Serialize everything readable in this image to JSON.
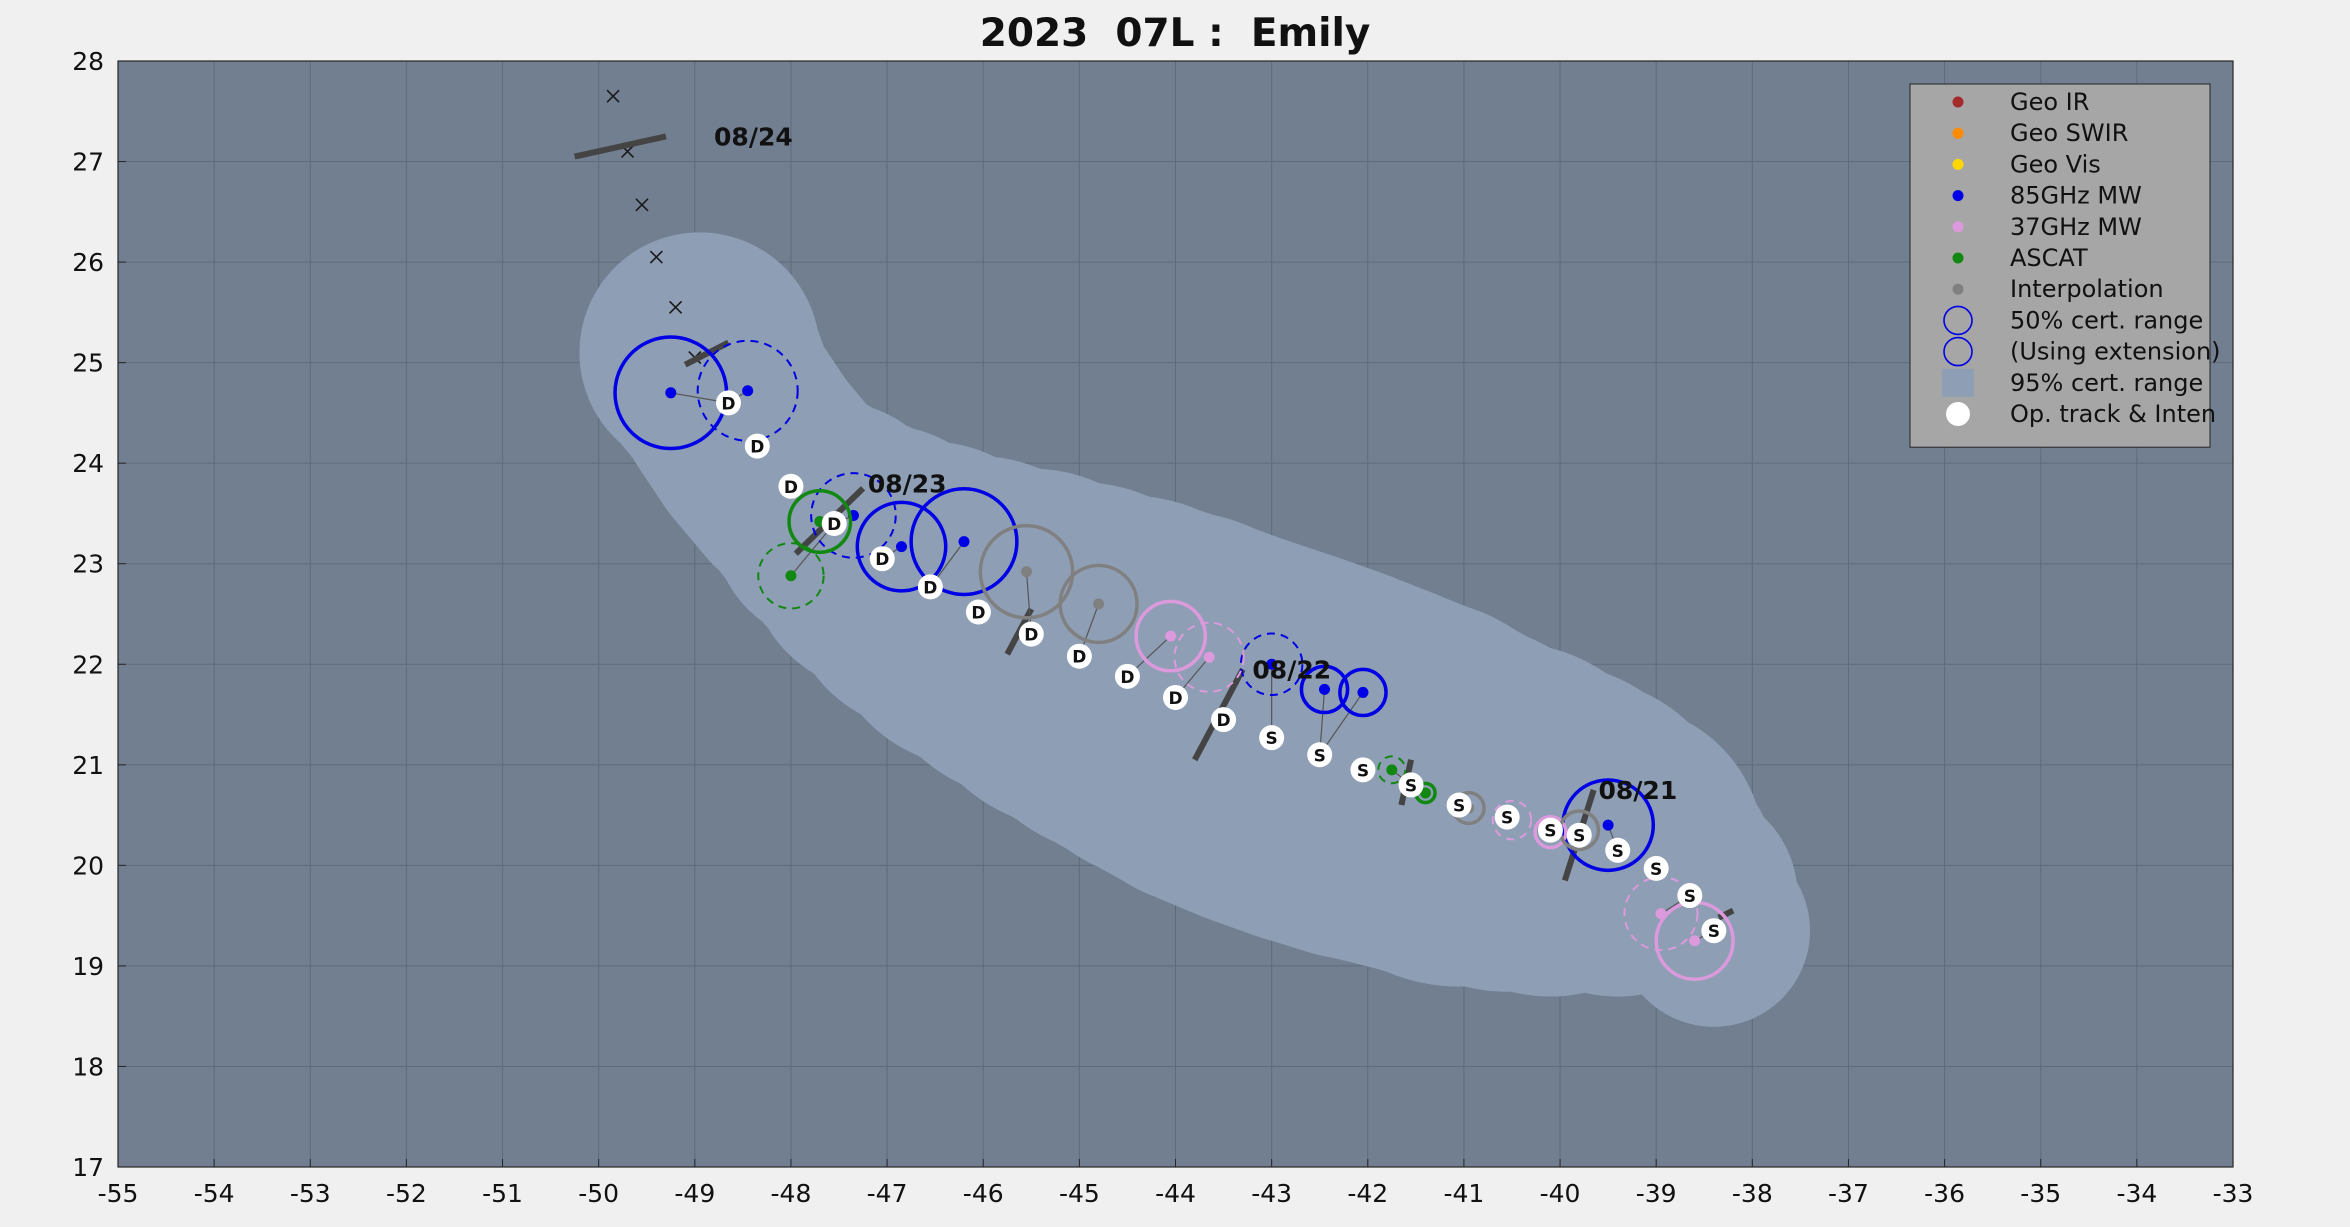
{
  "chart_data": {
    "type": "scatter",
    "title": "2023  07L :  Emily",
    "xlim": [
      -55,
      -33
    ],
    "ylim": [
      17,
      28
    ],
    "x_ticks": [
      -55,
      -54,
      -53,
      -52,
      -51,
      -50,
      -49,
      -48,
      -47,
      -46,
      -45,
      -44,
      -43,
      -42,
      -41,
      -40,
      -39,
      -38,
      -37,
      -36,
      -35,
      -34,
      -33
    ],
    "y_ticks": [
      17,
      18,
      19,
      20,
      21,
      22,
      23,
      24,
      25,
      26,
      27,
      28
    ],
    "grid": true,
    "legend_position": "top-right",
    "colors": {
      "figure_bg": "#f0f0f0",
      "axes_bg": "#717f91",
      "cert95": "#8e9eb4",
      "legend_bg": "#a6a6a6",
      "geo_ir": "#a52a2a",
      "geo_swir": "#ff8c00",
      "geo_vis": "#ffd700",
      "mw85": "#0000e6",
      "mw37": "#dc9adc",
      "ascat": "#118811",
      "interp": "#808080"
    },
    "legend": [
      {
        "label": "Geo IR",
        "kind": "dot",
        "color": "#a52a2a"
      },
      {
        "label": "Geo SWIR",
        "kind": "dot",
        "color": "#ff8c00"
      },
      {
        "label": "Geo Vis",
        "kind": "dot",
        "color": "#ffd700"
      },
      {
        "label": "85GHz MW",
        "kind": "dot",
        "color": "#0000e6"
      },
      {
        "label": "37GHz MW",
        "kind": "dot",
        "color": "#dc9adc"
      },
      {
        "label": "ASCAT",
        "kind": "dot",
        "color": "#118811"
      },
      {
        "label": "Interpolation",
        "kind": "dot",
        "color": "#808080"
      },
      {
        "label": "50% cert. range",
        "kind": "circle-solid",
        "color": "#0000e6"
      },
      {
        "label": "(Using extension)",
        "kind": "circle-dashed",
        "color": "#0000e6"
      },
      {
        "label": "95% cert. range",
        "kind": "square",
        "color": "#8e9eb4"
      },
      {
        "label": "Op. track & Inten",
        "kind": "white-dot",
        "color": "#ffffff"
      }
    ],
    "date_labels": [
      {
        "text": "08/24",
        "x": -48.8,
        "y": 27.25
      },
      {
        "text": "08/23",
        "x": -47.2,
        "y": 23.8
      },
      {
        "text": "08/22",
        "x": -43.2,
        "y": 21.95
      },
      {
        "text": "08/21",
        "x": -39.6,
        "y": 20.75
      }
    ],
    "op_track": [
      {
        "x": -38.4,
        "y": 19.35,
        "label": "S"
      },
      {
        "x": -38.65,
        "y": 19.7,
        "label": "S"
      },
      {
        "x": -39.0,
        "y": 19.97,
        "label": "S"
      },
      {
        "x": -39.4,
        "y": 20.15,
        "label": "S"
      },
      {
        "x": -39.8,
        "y": 20.3,
        "label": "S"
      },
      {
        "x": -40.1,
        "y": 20.35,
        "label": "S"
      },
      {
        "x": -40.55,
        "y": 20.48,
        "label": "S"
      },
      {
        "x": -41.05,
        "y": 20.6,
        "label": "S"
      },
      {
        "x": -41.55,
        "y": 20.8,
        "label": "S"
      },
      {
        "x": -42.05,
        "y": 20.95,
        "label": "S"
      },
      {
        "x": -42.5,
        "y": 21.1,
        "label": "S"
      },
      {
        "x": -43.0,
        "y": 21.27,
        "label": "S"
      },
      {
        "x": -43.5,
        "y": 21.45,
        "label": "D"
      },
      {
        "x": -44.0,
        "y": 21.67,
        "label": "D"
      },
      {
        "x": -44.5,
        "y": 21.88,
        "label": "D"
      },
      {
        "x": -45.0,
        "y": 22.08,
        "label": "D"
      },
      {
        "x": -45.5,
        "y": 22.3,
        "label": "D"
      },
      {
        "x": -46.05,
        "y": 22.52,
        "label": "D"
      },
      {
        "x": -46.55,
        "y": 22.77,
        "label": "D"
      },
      {
        "x": -47.05,
        "y": 23.05,
        "label": "D"
      },
      {
        "x": -47.55,
        "y": 23.4,
        "label": "D"
      },
      {
        "x": -48.0,
        "y": 23.77,
        "label": "D"
      },
      {
        "x": -48.35,
        "y": 24.17,
        "label": "D"
      },
      {
        "x": -48.65,
        "y": 24.6,
        "label": "D"
      }
    ],
    "forecast_track": [
      {
        "x": -49.0,
        "y": 25.05
      },
      {
        "x": -49.2,
        "y": 25.55
      },
      {
        "x": -49.4,
        "y": 26.05
      },
      {
        "x": -49.55,
        "y": 26.57
      },
      {
        "x": -49.7,
        "y": 27.1
      },
      {
        "x": -49.85,
        "y": 27.65
      }
    ],
    "fixes": [
      {
        "type": "85GHz MW",
        "x": -39.5,
        "y": 20.4,
        "r50": 0.47,
        "extension": false
      },
      {
        "type": "85GHz MW",
        "x": -42.05,
        "y": 21.72,
        "r50": 0.24,
        "extension": false
      },
      {
        "type": "85GHz MW",
        "x": -42.45,
        "y": 21.75,
        "r50": 0.24,
        "extension": false
      },
      {
        "type": "85GHz MW",
        "x": -43.0,
        "y": 22.0,
        "r50": 0.32,
        "extension": true
      },
      {
        "type": "85GHz MW",
        "x": -46.2,
        "y": 23.22,
        "r50": 0.55,
        "extension": false
      },
      {
        "type": "85GHz MW",
        "x": -46.85,
        "y": 23.17,
        "r50": 0.46,
        "extension": false
      },
      {
        "type": "85GHz MW",
        "x": -47.35,
        "y": 23.48,
        "r50": 0.44,
        "extension": true
      },
      {
        "type": "85GHz MW",
        "x": -48.45,
        "y": 24.72,
        "r50": 0.52,
        "extension": true
      },
      {
        "type": "85GHz MW",
        "x": -49.25,
        "y": 24.7,
        "r50": 0.58,
        "extension": false
      },
      {
        "type": "37GHz MW",
        "x": -38.6,
        "y": 19.25,
        "r50": 0.4,
        "extension": false
      },
      {
        "type": "37GHz MW",
        "x": -38.95,
        "y": 19.52,
        "r50": 0.38,
        "extension": true
      },
      {
        "type": "37GHz MW",
        "x": -40.1,
        "y": 20.33,
        "r50": 0.16,
        "extension": false
      },
      {
        "type": "37GHz MW",
        "x": -40.5,
        "y": 20.45,
        "r50": 0.2,
        "extension": true
      },
      {
        "type": "37GHz MW",
        "x": -43.65,
        "y": 22.07,
        "r50": 0.36,
        "extension": true
      },
      {
        "type": "37GHz MW",
        "x": -44.05,
        "y": 22.28,
        "r50": 0.36,
        "extension": false
      },
      {
        "type": "ASCAT",
        "x": -41.4,
        "y": 20.72,
        "r50": 0.1,
        "extension": false
      },
      {
        "type": "ASCAT",
        "x": -41.75,
        "y": 20.95,
        "r50": 0.14,
        "extension": true
      },
      {
        "type": "ASCAT",
        "x": -47.7,
        "y": 23.42,
        "r50": 0.32,
        "extension": false
      },
      {
        "type": "ASCAT",
        "x": -48.0,
        "y": 22.88,
        "r50": 0.34,
        "extension": true
      },
      {
        "type": "Interpolation",
        "x": -39.8,
        "y": 20.35,
        "r50": 0.2,
        "extension": false
      },
      {
        "type": "Interpolation",
        "x": -40.95,
        "y": 20.57,
        "r50": 0.16,
        "extension": false
      },
      {
        "type": "Interpolation",
        "x": -44.8,
        "y": 22.6,
        "r50": 0.4,
        "extension": false
      },
      {
        "type": "Interpolation",
        "x": -45.55,
        "y": 22.92,
        "r50": 0.48,
        "extension": false
      }
    ],
    "wind_bars": [
      {
        "x1": -38.2,
        "y1": 19.55,
        "x2": -38.35,
        "y2": 19.48
      },
      {
        "x1": -39.65,
        "y1": 20.75,
        "x2": -39.95,
        "y2": 19.85
      },
      {
        "x1": -41.55,
        "y1": 21.05,
        "x2": -41.65,
        "y2": 20.6
      },
      {
        "x1": -43.3,
        "y1": 21.95,
        "x2": -43.8,
        "y2": 21.05
      },
      {
        "x1": -45.5,
        "y1": 22.55,
        "x2": -45.75,
        "y2": 22.1
      },
      {
        "x1": -47.25,
        "y1": 23.75,
        "x2": -47.95,
        "y2": 23.1
      },
      {
        "x1": -48.65,
        "y1": 25.2,
        "x2": -49.1,
        "y2": 24.98
      },
      {
        "x1": -49.3,
        "y1": 27.25,
        "x2": -50.25,
        "y2": 27.05
      }
    ]
  }
}
